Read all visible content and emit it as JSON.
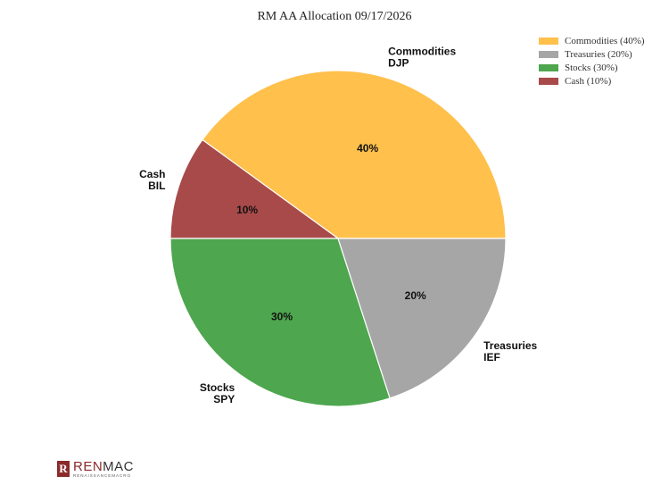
{
  "chart_data": {
    "type": "pie",
    "title": "RM AA Allocation 09/17/2026",
    "slices": [
      {
        "label": "Commodities",
        "ticker": "DJP",
        "value": 40,
        "value_label": "40%",
        "legend": "Commodities (40%)",
        "color": "#FFC04C"
      },
      {
        "label": "Cash",
        "ticker": "BIL",
        "value": 10,
        "value_label": "10%",
        "legend": "Cash (10%)",
        "color": "#A84A4A"
      },
      {
        "label": "Stocks",
        "ticker": "SPY",
        "value": 30,
        "value_label": "30%",
        "legend": "Stocks (30%)",
        "color": "#4EA64E"
      },
      {
        "label": "Treasuries",
        "ticker": "IEF",
        "value": 20,
        "value_label": "20%",
        "legend": "Treasuries (20%)",
        "color": "#A6A6A6"
      }
    ],
    "legend_order": [
      "Commodities (40%)",
      "Treasuries (20%)",
      "Stocks (30%)",
      "Cash (10%)"
    ],
    "legend_colors": [
      "#FFC04C",
      "#A6A6A6",
      "#4EA64E",
      "#A84A4A"
    ],
    "legend_position": "top-right"
  },
  "logo": {
    "main_left": "REN",
    "main_right": "MAC",
    "sub": "RENAISSANCEMACRO",
    "mark": "R"
  }
}
